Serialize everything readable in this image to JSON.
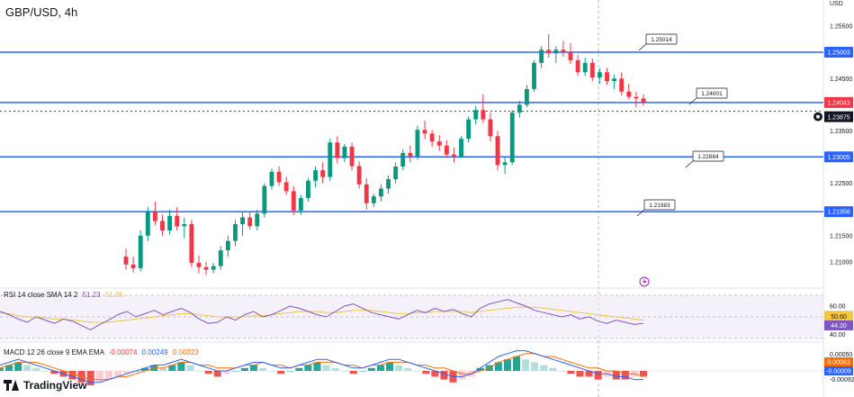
{
  "header": {
    "title": "GBP/USD, 4h",
    "currency": "USD"
  },
  "colors": {
    "up": "#089981",
    "down": "#f23645",
    "level": "#2962ff",
    "rsi": "#7e57c2",
    "rsi_ma": "#f5c542",
    "macd": "#2962ff",
    "signal": "#ff6d00"
  },
  "chart_data": {
    "type": "candlestick",
    "title": "GBP/USD, 4h",
    "ylim": [
      1.205,
      1.26
    ],
    "y_ticks": [
      "1.25500",
      "1.24500",
      "1.23500",
      "1.22500",
      "1.21500",
      "1.21000"
    ],
    "horizontal_levels": [
      1.25003,
      1.24043,
      1.23005,
      1.21958
    ],
    "level_labels": [
      "1.25003",
      "1.23005",
      "1.21958"
    ],
    "current_price": 1.23875,
    "current_price_label": "1.23875",
    "last_price_label": "1.24043",
    "callouts": [
      {
        "text": "1.25014",
        "x": 58,
        "value": 1.25014
      },
      {
        "text": "1.24001",
        "x": 66,
        "value": 1.24001
      },
      {
        "text": "1.22884",
        "x": 66,
        "value": 1.22884
      },
      {
        "text": "1.21983",
        "x": 58,
        "value": 1.21983
      }
    ],
    "candles": [
      [
        1.211,
        1.2125,
        1.2085,
        1.2095
      ],
      [
        1.2095,
        1.211,
        1.208,
        1.2088
      ],
      [
        1.2088,
        1.216,
        1.2082,
        1.215
      ],
      [
        1.215,
        1.2205,
        1.214,
        1.2195
      ],
      [
        1.2195,
        1.2215,
        1.217,
        1.2178
      ],
      [
        1.2178,
        1.219,
        1.215,
        1.216
      ],
      [
        1.216,
        1.22,
        1.2152,
        1.2188
      ],
      [
        1.2188,
        1.2205,
        1.216,
        1.2168
      ],
      [
        1.2168,
        1.2185,
        1.2145,
        1.2172
      ],
      [
        1.2172,
        1.218,
        1.209,
        1.2098
      ],
      [
        1.2098,
        1.2112,
        1.2078,
        1.209
      ],
      [
        1.209,
        1.21,
        1.2075,
        1.2085
      ],
      [
        1.2085,
        1.2098,
        1.2078,
        1.2092
      ],
      [
        1.2092,
        1.213,
        1.2085,
        1.2122
      ],
      [
        1.2122,
        1.215,
        1.211,
        1.214
      ],
      [
        1.214,
        1.218,
        1.213,
        1.2172
      ],
      [
        1.2172,
        1.2195,
        1.215,
        1.2185
      ],
      [
        1.2185,
        1.2195,
        1.2162,
        1.2168
      ],
      [
        1.2168,
        1.22,
        1.216,
        1.2192
      ],
      [
        1.2192,
        1.225,
        1.2185,
        1.2245
      ],
      [
        1.2245,
        1.2278,
        1.2238,
        1.2272
      ],
      [
        1.2272,
        1.2282,
        1.2245,
        1.2252
      ],
      [
        1.2252,
        1.2262,
        1.2228,
        1.2235
      ],
      [
        1.2235,
        1.2245,
        1.219,
        1.2198
      ],
      [
        1.2198,
        1.2228,
        1.219,
        1.2222
      ],
      [
        1.2222,
        1.226,
        1.2215,
        1.2255
      ],
      [
        1.2255,
        1.2282,
        1.2242,
        1.2275
      ],
      [
        1.2275,
        1.229,
        1.225,
        1.2262
      ],
      [
        1.2262,
        1.2335,
        1.2255,
        1.2328
      ],
      [
        1.2328,
        1.234,
        1.2288,
        1.2298
      ],
      [
        1.2298,
        1.2325,
        1.229,
        1.232
      ],
      [
        1.232,
        1.2328,
        1.2275,
        1.2283
      ],
      [
        1.2283,
        1.2292,
        1.224,
        1.2248
      ],
      [
        1.2248,
        1.226,
        1.22,
        1.2212
      ],
      [
        1.2212,
        1.223,
        1.2205,
        1.2225
      ],
      [
        1.2225,
        1.2248,
        1.2215,
        1.224
      ],
      [
        1.224,
        1.2265,
        1.223,
        1.2258
      ],
      [
        1.2258,
        1.229,
        1.225,
        1.2282
      ],
      [
        1.2282,
        1.2315,
        1.2275,
        1.2308
      ],
      [
        1.2308,
        1.2322,
        1.229,
        1.2302
      ],
      [
        1.2302,
        1.236,
        1.2295,
        1.2352
      ],
      [
        1.2352,
        1.237,
        1.2335,
        1.2345
      ],
      [
        1.2345,
        1.2352,
        1.232,
        1.233
      ],
      [
        1.233,
        1.2342,
        1.2312,
        1.2322
      ],
      [
        1.2322,
        1.2332,
        1.2298,
        1.2305
      ],
      [
        1.2305,
        1.2318,
        1.229,
        1.2302
      ],
      [
        1.2302,
        1.234,
        1.2298,
        1.2335
      ],
      [
        1.2335,
        1.2378,
        1.2328,
        1.2372
      ],
      [
        1.2372,
        1.2398,
        1.2362,
        1.239
      ],
      [
        1.239,
        1.242,
        1.2365,
        1.2372
      ],
      [
        1.2372,
        1.2385,
        1.233,
        1.234
      ],
      [
        1.234,
        1.235,
        1.2275,
        1.2285
      ],
      [
        1.2285,
        1.23,
        1.2268,
        1.229
      ],
      [
        1.229,
        1.239,
        1.2285,
        1.2385
      ],
      [
        1.2385,
        1.2408,
        1.2375,
        1.24
      ],
      [
        1.24,
        1.2438,
        1.2395,
        1.243
      ],
      [
        1.243,
        1.2485,
        1.2425,
        1.248
      ],
      [
        1.248,
        1.2512,
        1.247,
        1.2505
      ],
      [
        1.2505,
        1.2535,
        1.249,
        1.2498
      ],
      [
        1.2498,
        1.2512,
        1.248,
        1.2505
      ],
      [
        1.2505,
        1.2522,
        1.2492,
        1.25
      ],
      [
        1.25,
        1.2518,
        1.2478,
        1.2485
      ],
      [
        1.2485,
        1.2495,
        1.2455,
        1.2462
      ],
      [
        1.2462,
        1.249,
        1.2455,
        1.248
      ],
      [
        1.248,
        1.2488,
        1.2445,
        1.2452
      ],
      [
        1.2452,
        1.247,
        1.244,
        1.2462
      ],
      [
        1.2462,
        1.247,
        1.2438,
        1.2445
      ],
      [
        1.2445,
        1.2458,
        1.243,
        1.245
      ],
      [
        1.245,
        1.2462,
        1.2418,
        1.2425
      ],
      [
        1.2425,
        1.244,
        1.241,
        1.2415
      ],
      [
        1.2415,
        1.2425,
        1.2395,
        1.2412
      ],
      [
        1.2412,
        1.242,
        1.2398,
        1.2404
      ]
    ]
  },
  "rsi": {
    "label": "RSI 14 close SMA 14 2",
    "values": [
      "51.23",
      "51.36"
    ],
    "axis_values": [
      "60.00",
      "50.60",
      "44.20",
      "40.00"
    ],
    "series": [
      55,
      52,
      48,
      45,
      50,
      47,
      44,
      48,
      46,
      42,
      38,
      43,
      47,
      52,
      55,
      50,
      53,
      56,
      52,
      55,
      58,
      54,
      48,
      44,
      45,
      50,
      47,
      52,
      55,
      50,
      52,
      56,
      60,
      58,
      55,
      52,
      50,
      55,
      60,
      62,
      58,
      54,
      52,
      50,
      48,
      52,
      56,
      54,
      58,
      55,
      57,
      53,
      50,
      58,
      62,
      64,
      66,
      63,
      60,
      56,
      54,
      52,
      50,
      52,
      48,
      50,
      46,
      44,
      47,
      45,
      43,
      44
    ],
    "ma_series": [
      54,
      53,
      51,
      50,
      50,
      49,
      48,
      48,
      47,
      46,
      45,
      45,
      45,
      46,
      47,
      48,
      49,
      50,
      51,
      52,
      53,
      53,
      52,
      51,
      50,
      50,
      50,
      50,
      51,
      51,
      52,
      53,
      54,
      55,
      55,
      55,
      54,
      54,
      55,
      56,
      56,
      56,
      55,
      54,
      53,
      53,
      54,
      54,
      55,
      55,
      55,
      55,
      54,
      55,
      56,
      57,
      58,
      59,
      59,
      59,
      58,
      57,
      56,
      55,
      54,
      53,
      52,
      51,
      50,
      49,
      48,
      47
    ]
  },
  "macd": {
    "label": "MACD 12 26 close 9 EMA EMA",
    "values": [
      "-0.00074",
      "0.00249",
      "0.00323"
    ],
    "axis_values": [
      "0.00050",
      "0.00083",
      "-0.00009",
      "-0.00092"
    ],
    "hist": [
      1,
      2,
      3,
      2,
      1,
      0,
      -1,
      -2,
      -3,
      -4,
      -5,
      -4,
      -3,
      -2,
      -1,
      0,
      1,
      2,
      1,
      2,
      3,
      2,
      0,
      -1,
      -2,
      -1,
      0,
      1,
      2,
      1,
      0,
      -1,
      0,
      1,
      2,
      3,
      2,
      1,
      0,
      -1,
      0,
      1,
      2,
      3,
      2,
      1,
      0,
      -1,
      -2,
      -3,
      -4,
      -3,
      -2,
      1,
      2,
      3,
      4,
      5,
      4,
      3,
      2,
      1,
      0,
      -1,
      -2,
      -2,
      -3,
      -2,
      -3,
      -3,
      -2,
      -2
    ],
    "macd_line": [
      2,
      3,
      4,
      3,
      2,
      1,
      0,
      -1,
      -2,
      -3,
      -4,
      -4,
      -3,
      -2,
      -1,
      0,
      1,
      2,
      2,
      3,
      4,
      3,
      2,
      1,
      0,
      0,
      1,
      2,
      3,
      3,
      2,
      1,
      1,
      2,
      3,
      4,
      4,
      3,
      2,
      1,
      1,
      2,
      3,
      4,
      4,
      3,
      2,
      1,
      0,
      -1,
      -2,
      -2,
      -1,
      1,
      3,
      5,
      6,
      7,
      7,
      6,
      5,
      4,
      3,
      2,
      1,
      0,
      -1,
      -1,
      -2,
      -2,
      -3,
      -3
    ],
    "signal_line": [
      1,
      2,
      3,
      3,
      3,
      2,
      1,
      0,
      -1,
      -2,
      -3,
      -3,
      -3,
      -2,
      -2,
      -1,
      0,
      1,
      1,
      2,
      3,
      3,
      2,
      2,
      1,
      1,
      1,
      2,
      2,
      3,
      2,
      2,
      1,
      2,
      2,
      3,
      3,
      3,
      2,
      2,
      1,
      2,
      2,
      3,
      3,
      3,
      2,
      2,
      1,
      1,
      0,
      -1,
      -1,
      0,
      1,
      3,
      4,
      5,
      6,
      6,
      5,
      5,
      4,
      3,
      2,
      1,
      1,
      0,
      0,
      -1,
      -1,
      -2
    ]
  },
  "branding": {
    "logo_text": "TradingView"
  }
}
